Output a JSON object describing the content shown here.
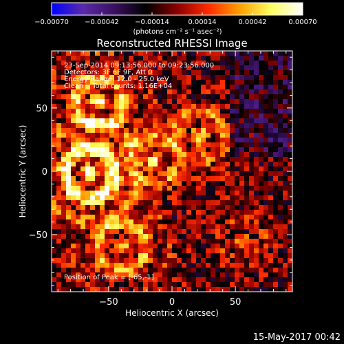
{
  "chart_data": {
    "type": "heatmap",
    "title": "Reconstructed RHESSI Image",
    "xlabel": "Heliocentric X (arcsec)",
    "ylabel": "Heliocentric Y (arcsec)",
    "xlim": [
      -95,
      95
    ],
    "ylim": [
      -95,
      95
    ],
    "x_ticks": [
      -50,
      0,
      50
    ],
    "y_ticks": [
      -50,
      0,
      50
    ],
    "x_tick_labels": [
      "−50",
      "0",
      "50"
    ],
    "y_tick_labels": [
      "−50",
      "0",
      "50"
    ],
    "colorbar": {
      "range": [
        -0.0007,
        0.0007
      ],
      "ticks": [
        -0.0007,
        -0.00042,
        -0.00014,
        0.00014,
        0.00042,
        0.0007
      ],
      "tick_labels": [
        "−0.00070",
        "−0.00042",
        "−0.00014",
        "0.00014",
        "0.00042",
        "0.00070"
      ],
      "unit_label": "(photons cm⁻² s⁻¹ asec⁻²)",
      "colors": [
        "#0000ff",
        "#5a2aa8",
        "#3a1060",
        "#000000",
        "#8a0000",
        "#ff2a00",
        "#ffa000",
        "#ffff60",
        "#ffffff"
      ]
    },
    "annotations": [
      "23-Sep-2014 09:13:56.000 to 09:23:56.000",
      "Detectors: 3F 6F 9F, Att 0",
      "Energy Range: 12.0 - 25.0 keV",
      "Clean    Total counts: 1.16E+04",
      "Position of Peak = [-65,-1]"
    ],
    "peak_position": [
      -65,
      -1
    ],
    "sources": [
      {
        "x": -65,
        "y": -1,
        "amp": 1.0,
        "radius": 26
      },
      {
        "x": -57,
        "y": 55,
        "amp": 0.9,
        "radius": 20
      },
      {
        "x": -15,
        "y": 8,
        "amp": 0.6,
        "radius": 16
      },
      {
        "x": 22,
        "y": 28,
        "amp": 0.7,
        "radius": 18
      },
      {
        "x": -40,
        "y": -60,
        "amp": 0.65,
        "radius": 22
      },
      {
        "x": 55,
        "y": -55,
        "amp": 0.4,
        "radius": 14
      }
    ]
  },
  "footer": {
    "timestamp": "15-May-2017 00:42"
  }
}
